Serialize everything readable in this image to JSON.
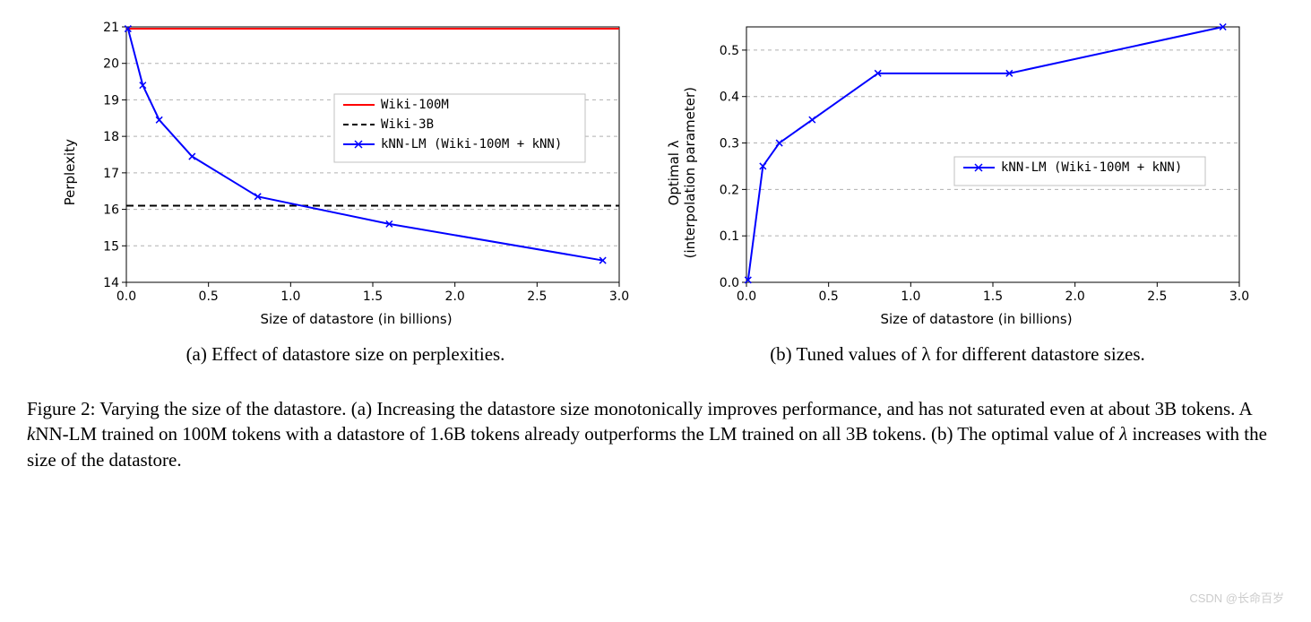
{
  "chart_a": {
    "type": "line",
    "xlabel": "Size of datastore (in billions)",
    "ylabel": "Perplexity",
    "xlim": [
      0.0,
      3.0
    ],
    "ylim": [
      14,
      21
    ],
    "xticks": [
      0.0,
      0.5,
      1.0,
      1.5,
      2.0,
      2.5,
      3.0
    ],
    "yticks": [
      14,
      15,
      16,
      17,
      18,
      19,
      20,
      21
    ],
    "grid_color": "#b0b0b0",
    "grid_dash": "4,4",
    "background_color": "#ffffff",
    "border_color": "#000000",
    "series": {
      "wiki100m": {
        "label": "Wiki-100M",
        "color": "#ff0000",
        "style": "solid",
        "width": 2,
        "marker": "none",
        "x": [
          0.0,
          3.0
        ],
        "y": [
          20.95,
          20.95
        ]
      },
      "wiki3b": {
        "label": "Wiki-3B",
        "color": "#000000",
        "style": "dashed",
        "width": 2,
        "marker": "none",
        "x": [
          0.0,
          3.0
        ],
        "y": [
          16.1,
          16.1
        ]
      },
      "knnlm": {
        "label": "kNN-LM (Wiki-100M + kNN)",
        "color": "#0000ff",
        "style": "solid",
        "width": 2,
        "marker": "x",
        "marker_size": 7,
        "x": [
          0.01,
          0.1,
          0.2,
          0.4,
          0.8,
          1.6,
          2.9
        ],
        "y": [
          20.95,
          19.4,
          18.45,
          17.45,
          16.35,
          15.6,
          14.6
        ]
      }
    },
    "subcaption": "(a) Effect of datastore size on perplexities."
  },
  "chart_b": {
    "type": "line",
    "xlabel": "Size of datastore (in billions)",
    "ylabel_line1": "Optimal λ",
    "ylabel_line2": "(interpolation parameter)",
    "xlim": [
      0.0,
      3.0
    ],
    "ylim": [
      0.0,
      0.55
    ],
    "xticks": [
      0.0,
      0.5,
      1.0,
      1.5,
      2.0,
      2.5,
      3.0
    ],
    "yticks": [
      0.0,
      0.1,
      0.2,
      0.3,
      0.4,
      0.5
    ],
    "grid_color": "#b0b0b0",
    "grid_dash": "4,4",
    "background_color": "#ffffff",
    "border_color": "#000000",
    "series": {
      "knnlm": {
        "label": "kNN-LM (Wiki-100M + kNN)",
        "color": "#0000ff",
        "style": "solid",
        "width": 2,
        "marker": "x",
        "marker_size": 7,
        "x": [
          0.01,
          0.1,
          0.2,
          0.4,
          0.8,
          1.6,
          2.9
        ],
        "y": [
          0.005,
          0.25,
          0.3,
          0.35,
          0.45,
          0.45,
          0.55
        ]
      }
    },
    "subcaption": "(b) Tuned values of λ for different datastore sizes."
  },
  "main_caption": "Figure 2: Varying the size of the datastore. (a) Increasing the datastore size monotonically improves performance, and has not saturated even at about 3B tokens. A kNN-LM trained on 100M tokens with a datastore of 1.6B tokens already outperforms the LM trained on all 3B tokens. (b) The optimal value of λ increases with the size of the datastore.",
  "watermark": "CSDN @长命百岁"
}
